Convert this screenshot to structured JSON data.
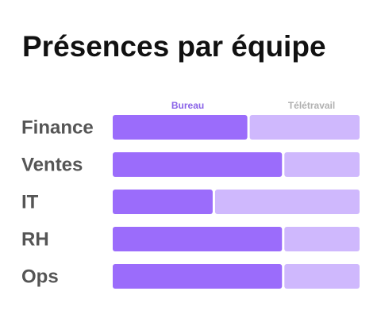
{
  "title": "Présences par équipe",
  "chart_data": {
    "type": "bar",
    "stacked": true,
    "orientation": "horizontal",
    "normalized_to_percent": true,
    "categories": [
      "Finance",
      "Ventes",
      "IT",
      "RH",
      "Ops"
    ],
    "series": [
      {
        "name": "Bureau",
        "values": [
          55,
          69,
          41,
          69,
          69
        ],
        "color": "#9b6cfb"
      },
      {
        "name": "Télétravail",
        "values": [
          45,
          31,
          59,
          31,
          31
        ],
        "color": "#cfb8fd"
      }
    ],
    "legend_placement": "top",
    "grid": false
  }
}
